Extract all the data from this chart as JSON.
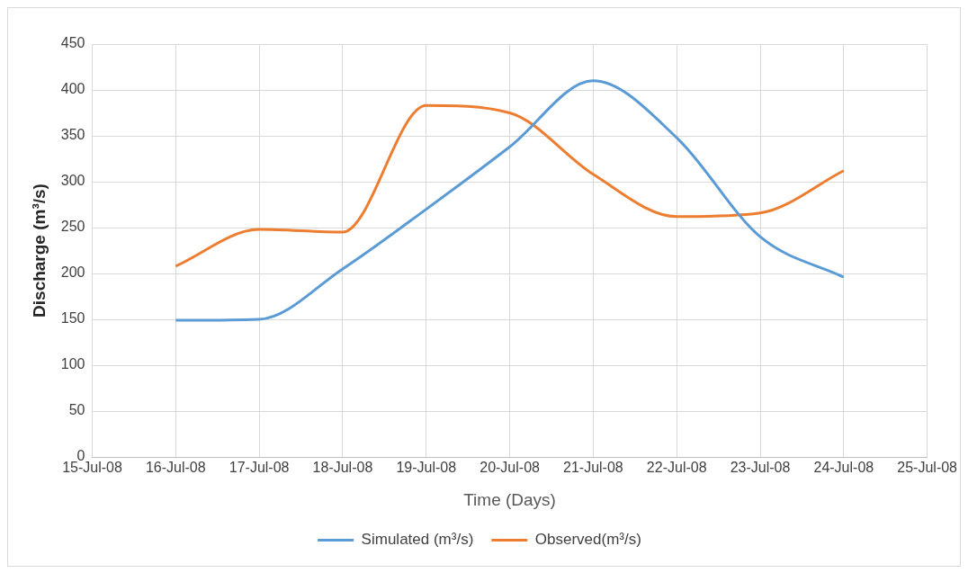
{
  "chart_data": {
    "type": "line",
    "xlabel": "Time (Days)",
    "ylabel": "Discharge (m³/s)",
    "x": [
      "--07-16",
      "--07-17",
      "--07-18",
      "--07-19",
      "--07-20",
      "--07-21",
      "--07-22",
      "--07-23",
      "--07-24"
    ],
    "series": [
      {
        "name": "Simulated (m³/s)",
        "color": "#5b9bd5",
        "values": [
          149,
          150,
          205,
          270,
          338,
          410,
          348,
          240,
          196
        ]
      },
      {
        "name": "Observed(m³/s)",
        "color": "#ed7d31",
        "values": [
          208,
          248,
          245,
          383,
          375,
          308,
          262,
          266,
          312
        ]
      }
    ],
    "xlim": [
      "--07-15",
      "--07-25"
    ],
    "xticks": [
      {
        "value": "--07-15",
        "label": "15-Jul-08"
      },
      {
        "value": "--07-16",
        "label": "16-Jul-08"
      },
      {
        "value": "--07-17",
        "label": "17-Jul-08"
      },
      {
        "value": "--07-18",
        "label": "18-Jul-08"
      },
      {
        "value": "--07-19",
        "label": "19-Jul-08"
      },
      {
        "value": "--07-20",
        "label": "20-Jul-08"
      },
      {
        "value": "--07-21",
        "label": "21-Jul-08"
      },
      {
        "value": "--07-22",
        "label": "22-Jul-08"
      },
      {
        "value": "--07-23",
        "label": "23-Jul-08"
      },
      {
        "value": "--07-24",
        "label": "24-Jul-08"
      },
      {
        "value": "--07-25",
        "label": "25-Jul-08"
      }
    ],
    "ylim": [
      0,
      450
    ],
    "yticks": [
      0,
      50,
      100,
      150,
      200,
      250,
      300,
      350,
      400,
      450
    ],
    "grid": true,
    "legend": "bottom",
    "marker": "none",
    "line_style": "solid"
  }
}
